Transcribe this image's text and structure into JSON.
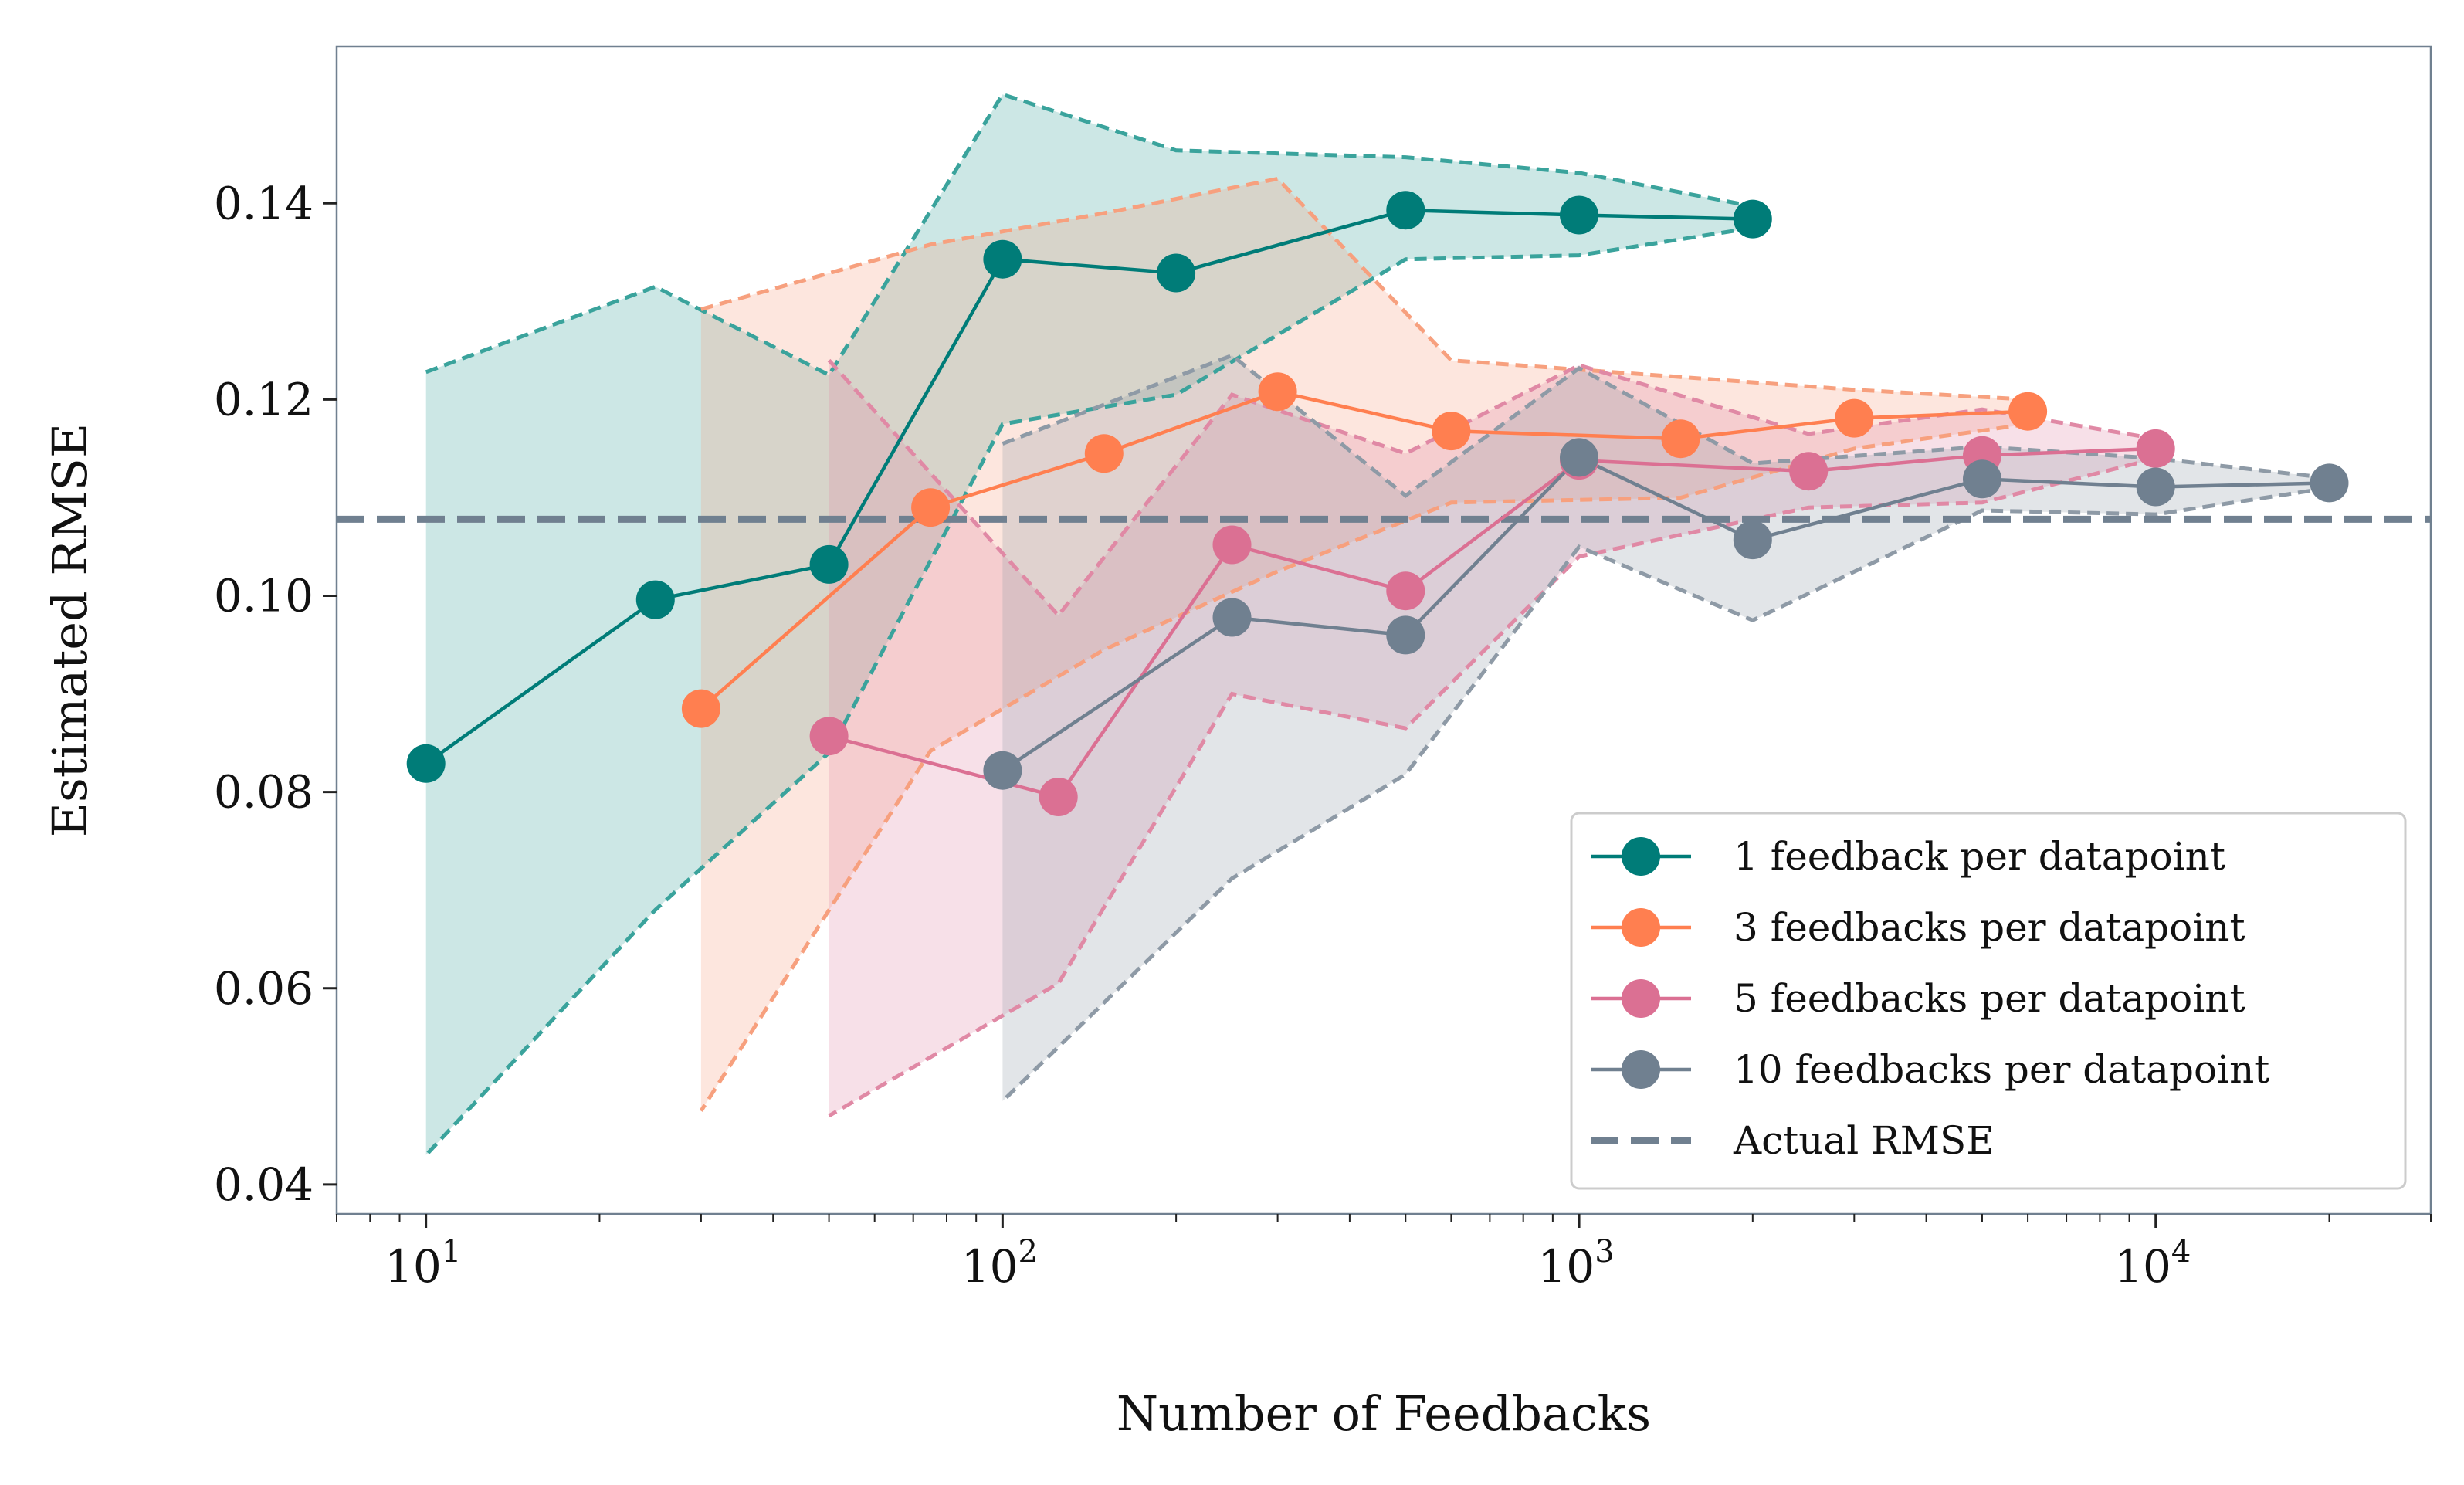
{
  "chart_data": {
    "type": "line",
    "title": "",
    "xlabel": "Number of Feedbacks",
    "ylabel": "Estimated RMSE",
    "xscale": "log",
    "xlim": [
      7,
      30000
    ],
    "ylim": [
      0.037,
      0.156
    ],
    "yticks": [
      0.04,
      0.06,
      0.08,
      0.1,
      0.12,
      0.14
    ],
    "ytick_labels": [
      "0.04",
      "0.06",
      "0.08",
      "0.10",
      "0.12",
      "0.14"
    ],
    "xticks": [
      10,
      100,
      1000,
      10000
    ],
    "xtick_labels": [
      {
        "base": "10",
        "exp": "1"
      },
      {
        "base": "10",
        "exp": "2"
      },
      {
        "base": "10",
        "exp": "3"
      },
      {
        "base": "10",
        "exp": "4"
      }
    ],
    "legend_position": "lower-right",
    "reference_line": {
      "name": "Actual RMSE",
      "y": 0.1078,
      "color": "#708090"
    },
    "series": [
      {
        "name": "1 feedback per datapoint",
        "color": "#007c78",
        "band_color": "#3aa39c",
        "x": [
          10,
          25,
          50,
          100,
          200,
          500,
          1000,
          2000
        ],
        "y": [
          0.0829,
          0.0996,
          0.1032,
          0.1343,
          0.1329,
          0.1393,
          0.1388,
          0.1384
        ],
        "upper": [
          0.1228,
          0.1315,
          0.1225,
          0.1511,
          0.1454,
          0.1447,
          0.1431,
          0.1397
        ],
        "lower": [
          0.043,
          0.068,
          0.084,
          0.1175,
          0.1205,
          0.1343,
          0.1347,
          0.1375
        ]
      },
      {
        "name": "3 feedbacks per datapoint",
        "color": "#ff7f50",
        "band_color": "#f7a07e",
        "x": [
          30,
          75,
          150,
          300,
          600,
          1500,
          3000,
          6000
        ],
        "y": [
          0.0885,
          0.109,
          0.1145,
          0.1208,
          0.1168,
          0.116,
          0.1181,
          0.1188
        ],
        "upper": [
          0.1292,
          0.1358,
          0.139,
          0.1425,
          0.124,
          0.1223,
          0.121,
          0.12
        ],
        "lower": [
          0.0475,
          0.0842,
          0.0945,
          0.1025,
          0.1095,
          0.11,
          0.115,
          0.1175
        ]
      },
      {
        "name": "5 feedbacks per datapoint",
        "color": "#db7093",
        "band_color": "#e089a5",
        "x": [
          50,
          125,
          250,
          500,
          1000,
          2500,
          5000,
          10000
        ],
        "y": [
          0.0857,
          0.0795,
          0.1052,
          0.1005,
          0.1138,
          0.1127,
          0.1143,
          0.115
        ],
        "upper": [
          0.124,
          0.098,
          0.1205,
          0.1145,
          0.1235,
          0.1165,
          0.119,
          0.116
        ],
        "lower": [
          0.047,
          0.0605,
          0.09,
          0.0865,
          0.104,
          0.109,
          0.1095,
          0.114
        ]
      },
      {
        "name": "10 feedbacks per datapoint",
        "color": "#708090",
        "band_color": "#8e9aa6",
        "x": [
          100,
          250,
          500,
          1000,
          2000,
          5000,
          10000,
          20000
        ],
        "y": [
          0.0822,
          0.0978,
          0.096,
          0.1141,
          0.1057,
          0.1119,
          0.1111,
          0.1115
        ],
        "upper": [
          0.1155,
          0.1245,
          0.1102,
          0.1232,
          0.1135,
          0.1152,
          0.114,
          0.112
        ],
        "lower": [
          0.0485,
          0.0712,
          0.0818,
          0.105,
          0.0975,
          0.1087,
          0.1083,
          0.111
        ]
      }
    ]
  }
}
